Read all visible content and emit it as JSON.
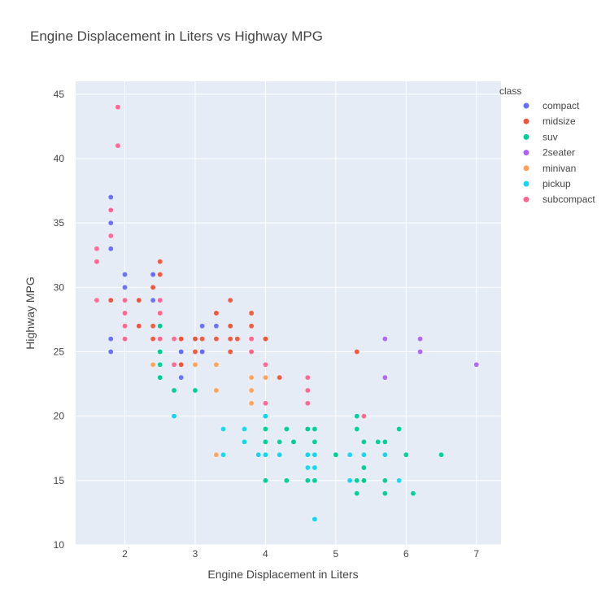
{
  "chart_data": {
    "type": "scatter",
    "title": "Engine Displacement in Liters vs Highway MPG",
    "xlabel": "Engine Displacement in Liters",
    "ylabel": "Highway MPG",
    "xlim": [
      1.3,
      7.35
    ],
    "ylim": [
      10,
      46
    ],
    "xticks": [
      2,
      3,
      4,
      5,
      6,
      7
    ],
    "yticks": [
      10,
      15,
      20,
      25,
      30,
      35,
      40,
      45
    ],
    "grid": true,
    "legend_title": "class",
    "legend_position": "top-right",
    "series": [
      {
        "name": "compact",
        "color": "#636efa",
        "points": [
          [
            1.8,
            29
          ],
          [
            1.8,
            29
          ],
          [
            2.0,
            31
          ],
          [
            2.0,
            30
          ],
          [
            2.8,
            26
          ],
          [
            2.8,
            26
          ],
          [
            3.1,
            27
          ],
          [
            1.8,
            26
          ],
          [
            1.8,
            25
          ],
          [
            2.0,
            28
          ],
          [
            2.0,
            27
          ],
          [
            2.8,
            25
          ],
          [
            2.8,
            25
          ],
          [
            3.1,
            25
          ],
          [
            3.1,
            25
          ],
          [
            2.2,
            27
          ],
          [
            2.2,
            29
          ],
          [
            2.4,
            31
          ],
          [
            2.4,
            31
          ],
          [
            3.0,
            26
          ],
          [
            3.0,
            26
          ],
          [
            3.3,
            27
          ],
          [
            1.8,
            29
          ],
          [
            1.8,
            35
          ],
          [
            1.8,
            37
          ],
          [
            1.8,
            33
          ],
          [
            2.0,
            29
          ],
          [
            2.0,
            26
          ],
          [
            2.0,
            29
          ],
          [
            2.0,
            26
          ],
          [
            2.5,
            29
          ],
          [
            2.5,
            29
          ],
          [
            2.8,
            23
          ],
          [
            2.8,
            24
          ],
          [
            2.0,
            26
          ],
          [
            2.4,
            29
          ]
        ]
      },
      {
        "name": "midsize",
        "color": "#EF553B",
        "points": [
          [
            2.4,
            30
          ],
          [
            2.4,
            30
          ],
          [
            3.1,
            26
          ],
          [
            3.5,
            29
          ],
          [
            3.6,
            26
          ],
          [
            2.4,
            27
          ],
          [
            3.0,
            26
          ],
          [
            3.3,
            28
          ],
          [
            3.8,
            26
          ],
          [
            3.8,
            28
          ],
          [
            3.8,
            27
          ],
          [
            4.0,
            26
          ],
          [
            3.5,
            27
          ],
          [
            2.2,
            27
          ],
          [
            2.2,
            29
          ],
          [
            2.5,
            31
          ],
          [
            2.5,
            32
          ],
          [
            2.8,
            26
          ],
          [
            2.8,
            26
          ],
          [
            3.3,
            28
          ],
          [
            1.8,
            29
          ],
          [
            2.0,
            27
          ],
          [
            2.8,
            24
          ],
          [
            3.5,
            25
          ],
          [
            3.5,
            26
          ],
          [
            4.2,
            23
          ],
          [
            5.3,
            25
          ],
          [
            2.4,
            26
          ],
          [
            2.5,
            27
          ],
          [
            3.0,
            25
          ],
          [
            3.5,
            27
          ],
          [
            3.8,
            25
          ],
          [
            2.0,
            27
          ],
          [
            2.8,
            26
          ],
          [
            2.5,
            28
          ],
          [
            3.3,
            26
          ],
          [
            4.0,
            26
          ]
        ]
      },
      {
        "name": "suv",
        "color": "#00cc96",
        "points": [
          [
            5.7,
            18
          ],
          [
            5.3,
            20
          ],
          [
            5.3,
            15
          ],
          [
            5.7,
            17
          ],
          [
            6.5,
            17
          ],
          [
            4.3,
            15
          ],
          [
            4.3,
            19
          ],
          [
            3.0,
            22
          ],
          [
            3.7,
            18
          ],
          [
            4.7,
            18
          ],
          [
            4.7,
            17
          ],
          [
            5.9,
            19
          ],
          [
            4.7,
            12
          ],
          [
            5.7,
            14
          ],
          [
            4.0,
            17
          ],
          [
            4.0,
            19
          ],
          [
            4.0,
            17
          ],
          [
            4.6,
            17
          ],
          [
            4.6,
            19
          ],
          [
            4.6,
            17
          ],
          [
            5.4,
            16
          ],
          [
            5.4,
            15
          ],
          [
            4.0,
            17
          ],
          [
            4.0,
            17
          ],
          [
            4.6,
            19
          ],
          [
            5.0,
            17
          ],
          [
            5.4,
            17
          ],
          [
            4.2,
            18
          ],
          [
            4.7,
            19
          ],
          [
            5.3,
            14
          ],
          [
            6.1,
            14
          ],
          [
            5.4,
            15
          ],
          [
            2.5,
            25
          ],
          [
            2.5,
            27
          ],
          [
            2.5,
            25
          ],
          [
            2.5,
            23
          ],
          [
            2.5,
            24
          ],
          [
            2.5,
            23
          ],
          [
            2.5,
            26
          ],
          [
            2.7,
            22
          ],
          [
            2.7,
            20
          ],
          [
            4.0,
            20
          ],
          [
            4.0,
            18
          ],
          [
            4.0,
            15
          ],
          [
            4.6,
            15
          ],
          [
            5.0,
            17
          ],
          [
            5.4,
            18
          ],
          [
            4.4,
            18
          ],
          [
            4.4,
            18
          ],
          [
            4.6,
            19
          ],
          [
            5.7,
            15
          ],
          [
            6.0,
            17
          ],
          [
            5.6,
            18
          ],
          [
            4.7,
            15
          ],
          [
            5.3,
            19
          ]
        ]
      },
      {
        "name": "2seater",
        "color": "#ab63fa",
        "points": [
          [
            5.7,
            26
          ],
          [
            5.7,
            23
          ],
          [
            6.2,
            26
          ],
          [
            6.2,
            25
          ],
          [
            7.0,
            24
          ]
        ]
      },
      {
        "name": "minivan",
        "color": "#FFA15A",
        "points": [
          [
            2.4,
            24
          ],
          [
            3.0,
            24
          ],
          [
            3.3,
            22
          ],
          [
            3.3,
            22
          ],
          [
            3.3,
            24
          ],
          [
            3.3,
            24
          ],
          [
            3.3,
            17
          ],
          [
            3.8,
            22
          ],
          [
            3.8,
            21
          ],
          [
            3.8,
            23
          ],
          [
            4.0,
            23
          ]
        ]
      },
      {
        "name": "pickup",
        "color": "#19d3f3",
        "points": [
          [
            2.7,
            20
          ],
          [
            2.7,
            20
          ],
          [
            3.4,
            19
          ],
          [
            3.4,
            17
          ],
          [
            4.0,
            17
          ],
          [
            4.7,
            17
          ],
          [
            4.7,
            16
          ],
          [
            4.7,
            17
          ],
          [
            5.2,
            15
          ],
          [
            5.2,
            15
          ],
          [
            5.7,
            17
          ],
          [
            5.9,
            15
          ],
          [
            3.9,
            17
          ],
          [
            3.9,
            17
          ],
          [
            3.9,
            17
          ],
          [
            4.7,
            17
          ],
          [
            4.7,
            16
          ],
          [
            5.2,
            17
          ],
          [
            5.2,
            15
          ],
          [
            4.2,
            17
          ],
          [
            4.6,
            16
          ],
          [
            4.6,
            17
          ],
          [
            5.4,
            17
          ],
          [
            5.4,
            17
          ],
          [
            4.0,
            20
          ],
          [
            4.0,
            17
          ],
          [
            4.2,
            17
          ],
          [
            4.7,
            12
          ],
          [
            4.7,
            16
          ],
          [
            5.2,
            15
          ],
          [
            3.7,
            19
          ],
          [
            3.7,
            18
          ],
          [
            4.7,
            16
          ]
        ]
      },
      {
        "name": "subcompact",
        "color": "#FF6692",
        "points": [
          [
            1.6,
            33
          ],
          [
            1.6,
            32
          ],
          [
            1.6,
            29
          ],
          [
            1.6,
            32
          ],
          [
            1.8,
            34
          ],
          [
            1.8,
            36
          ],
          [
            1.8,
            36
          ],
          [
            2.0,
            29
          ],
          [
            2.0,
            26
          ],
          [
            2.0,
            27
          ],
          [
            2.0,
            29
          ],
          [
            1.9,
            44
          ],
          [
            1.9,
            41
          ],
          [
            2.0,
            29
          ],
          [
            2.0,
            26
          ],
          [
            2.5,
            28
          ],
          [
            2.5,
            29
          ],
          [
            2.5,
            26
          ],
          [
            2.0,
            28
          ],
          [
            2.7,
            24
          ],
          [
            2.7,
            26
          ],
          [
            3.8,
            26
          ],
          [
            3.8,
            25
          ],
          [
            3.8,
            26
          ],
          [
            4.0,
            24
          ],
          [
            4.0,
            21
          ],
          [
            4.6,
            22
          ],
          [
            4.6,
            23
          ],
          [
            4.6,
            21
          ],
          [
            5.4,
            20
          ],
          [
            2.0,
            28
          ],
          [
            2.0,
            27
          ],
          [
            2.5,
            26
          ],
          [
            2.5,
            26
          ],
          [
            1.9,
            44
          ]
        ]
      }
    ]
  }
}
